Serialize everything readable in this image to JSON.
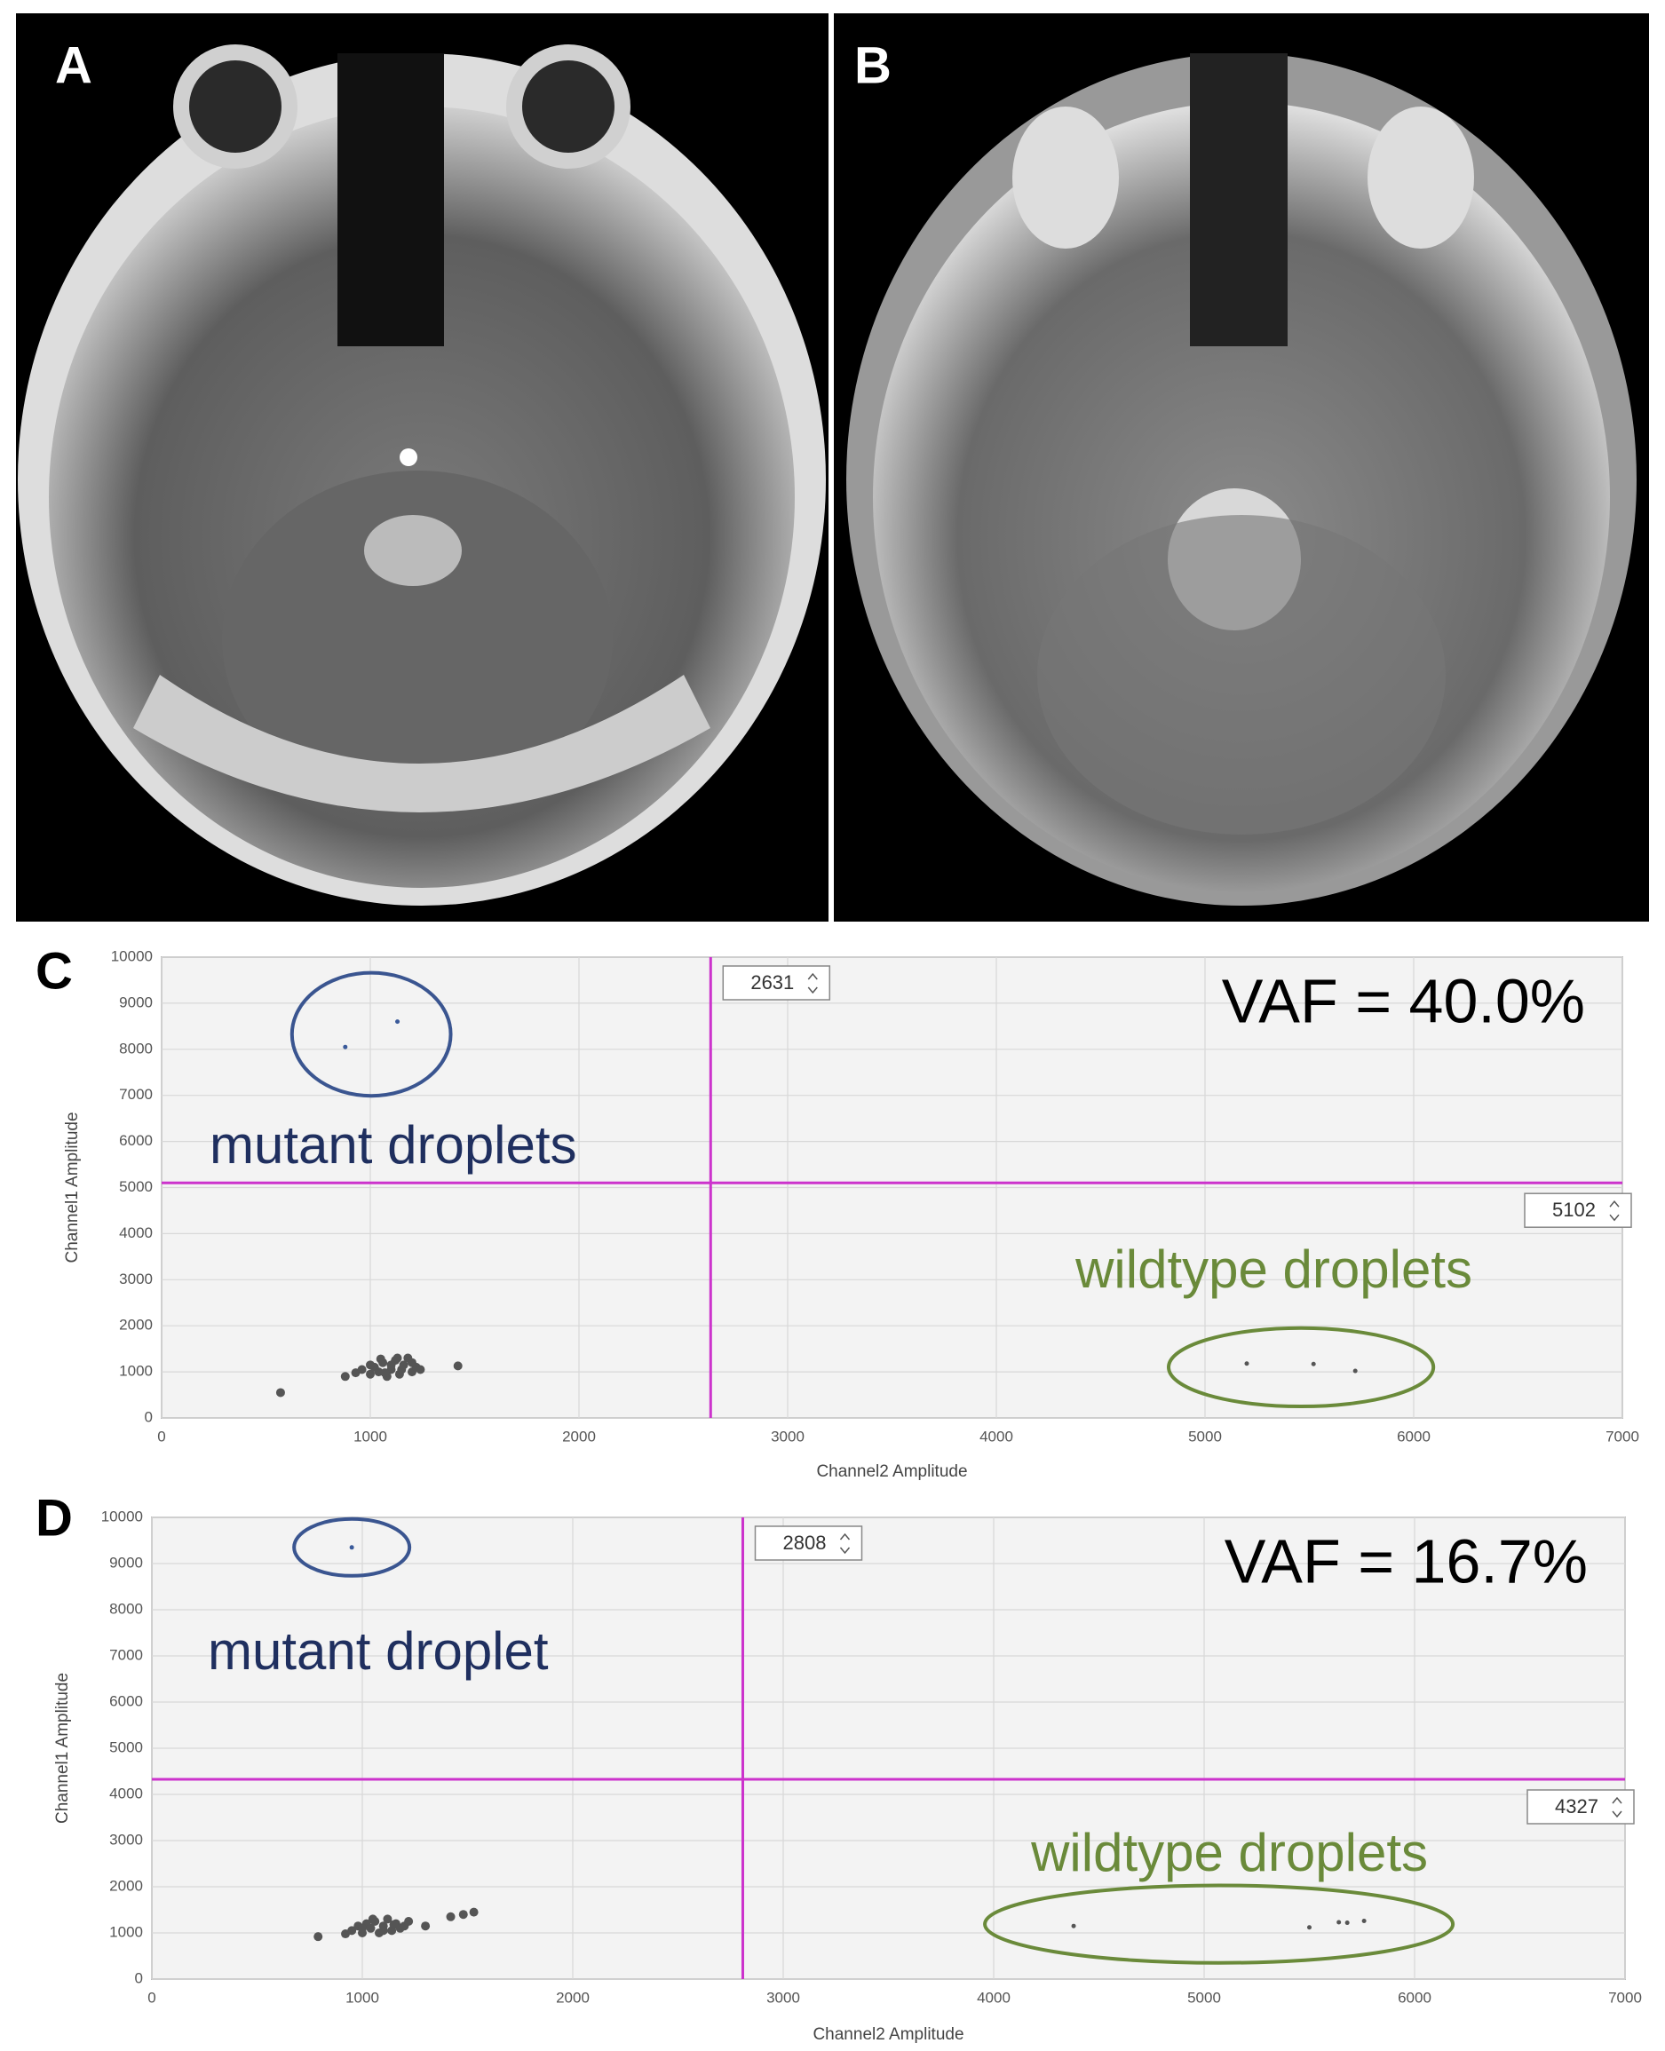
{
  "panels": [
    {
      "label": "A"
    },
    {
      "label": "B"
    }
  ],
  "chart_data": [
    {
      "type": "scatter",
      "label": "C",
      "xlabel": "Channel2 Amplitude",
      "ylabel": "Channel1 Amplitude",
      "xlim": [
        0,
        7000
      ],
      "ylim": [
        0,
        10000
      ],
      "xticks": [
        0,
        1000,
        2000,
        3000,
        4000,
        5000,
        6000,
        7000
      ],
      "yticks": [
        0,
        1000,
        2000,
        3000,
        4000,
        5000,
        6000,
        7000,
        8000,
        9000,
        10000
      ],
      "grid": true,
      "x_threshold": 2631,
      "y_threshold": 5102,
      "threshold_color": "#cc33cc",
      "annotation": "VAF = 40.0%",
      "series": [
        {
          "color": "#555555",
          "x": [
            570,
            880,
            930,
            960,
            1000,
            1020,
            1040,
            1060,
            1080,
            1100,
            1120,
            1140,
            1160,
            1180,
            1200,
            1220,
            1240,
            1000,
            1050,
            1100,
            1150,
            1200,
            1070,
            1130,
            1420
          ],
          "y": [
            550,
            900,
            980,
            1050,
            950,
            1100,
            1000,
            1200,
            900,
            1050,
            1250,
            950,
            1150,
            1300,
            1000,
            1100,
            1050,
            1150,
            1280,
            1150,
            1050,
            1200,
            980,
            1300,
            1130
          ]
        },
        {
          "color": "#3a5a9a",
          "label": "mutant droplets",
          "label_color": "#1f2f5f",
          "circle_color": "#3a5590",
          "x": [
            880,
            1130
          ],
          "y": [
            8050,
            8600
          ]
        },
        {
          "color": "#555555",
          "label": "wildtype droplets",
          "label_color": "#6a8a3a",
          "circle_color": "#6a8a3a",
          "x": [
            5200,
            5520,
            5720
          ],
          "y": [
            1180,
            1170,
            1020
          ]
        }
      ]
    },
    {
      "type": "scatter",
      "label": "D",
      "xlabel": "Channel2 Amplitude",
      "ylabel": "Channel1 Amplitude",
      "xlim": [
        0,
        7000
      ],
      "ylim": [
        0,
        10000
      ],
      "xticks": [
        0,
        1000,
        2000,
        3000,
        4000,
        5000,
        6000,
        7000
      ],
      "yticks": [
        0,
        1000,
        2000,
        3000,
        4000,
        5000,
        6000,
        7000,
        8000,
        9000,
        10000
      ],
      "grid": true,
      "x_threshold": 2808,
      "y_threshold": 4327,
      "threshold_color": "#cc33cc",
      "annotation": "VAF = 16.7%",
      "series": [
        {
          "color": "#555555",
          "x": [
            790,
            920,
            950,
            980,
            1000,
            1020,
            1040,
            1060,
            1080,
            1100,
            1120,
            1140,
            1160,
            1180,
            1200,
            1220,
            1000,
            1050,
            1100,
            1150,
            1300,
            1420,
            1480,
            1530
          ],
          "y": [
            920,
            980,
            1050,
            1150,
            1000,
            1200,
            1100,
            1250,
            1000,
            1150,
            1300,
            1050,
            1200,
            1100,
            1150,
            1250,
            1100,
            1300,
            1050,
            1180,
            1150,
            1350,
            1400,
            1450
          ]
        },
        {
          "color": "#3a5a9a",
          "label": "mutant droplet",
          "label_color": "#1f2f5f",
          "circle_color": "#3a5590",
          "x": [
            950
          ],
          "y": [
            9350
          ]
        },
        {
          "color": "#555555",
          "label": "wildtype droplets",
          "label_color": "#6a8a3a",
          "circle_color": "#6a8a3a",
          "x": [
            4380,
            5500,
            5640,
            5680,
            5760
          ],
          "y": [
            1150,
            1120,
            1230,
            1220,
            1260
          ]
        }
      ]
    }
  ]
}
